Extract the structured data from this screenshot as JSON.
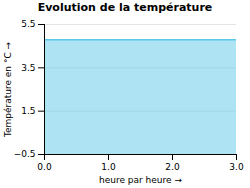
{
  "chart_data": {
    "type": "area",
    "title": "Evolution de la température",
    "x_label": "heure par heure",
    "y_label": "Température en °C",
    "x": [
      0,
      3
    ],
    "values": [
      4.8,
      4.8
    ],
    "color": "#5bc8e8",
    "xlim": [
      0,
      3
    ],
    "ylim": [
      -0.5,
      5.5
    ],
    "xticks": [
      0,
      1,
      2,
      3
    ],
    "yticks": [
      -0.5,
      1.5,
      3.5,
      5.5
    ],
    "grid": true
  }
}
